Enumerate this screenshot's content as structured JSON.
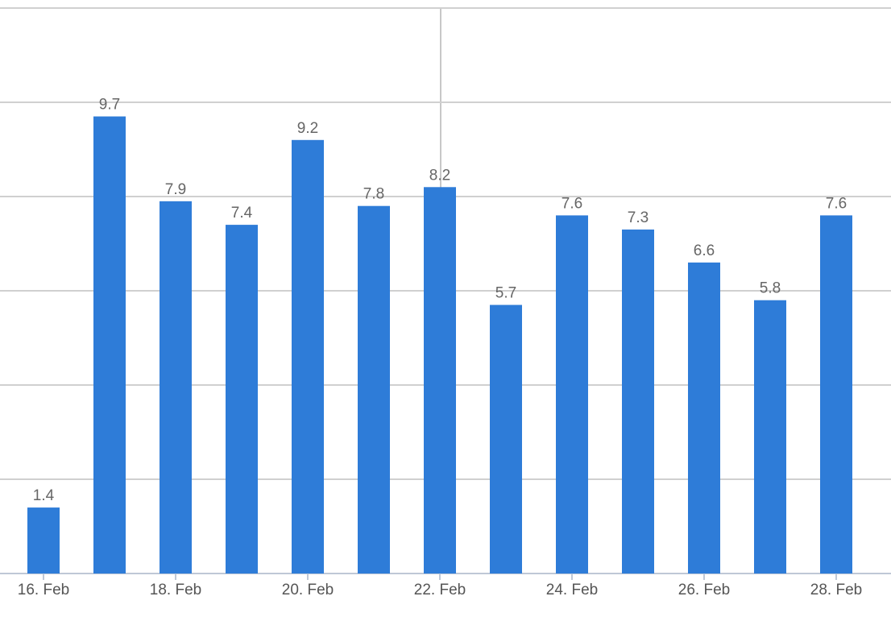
{
  "chart_data": {
    "type": "bar",
    "categories": [
      "16. Feb",
      null,
      "18. Feb",
      null,
      "20. Feb",
      null,
      "22. Feb",
      null,
      "24. Feb",
      null,
      "26. Feb",
      null,
      "28. Feb"
    ],
    "values": [
      1.4,
      9.7,
      7.9,
      7.4,
      9.2,
      7.8,
      8.2,
      5.7,
      7.6,
      7.3,
      6.6,
      5.8,
      7.6
    ],
    "color": "#2e7cd8",
    "ylim": [
      0,
      12
    ],
    "yticks": [
      0,
      2,
      4,
      6,
      8,
      10,
      12
    ],
    "grid": true
  }
}
